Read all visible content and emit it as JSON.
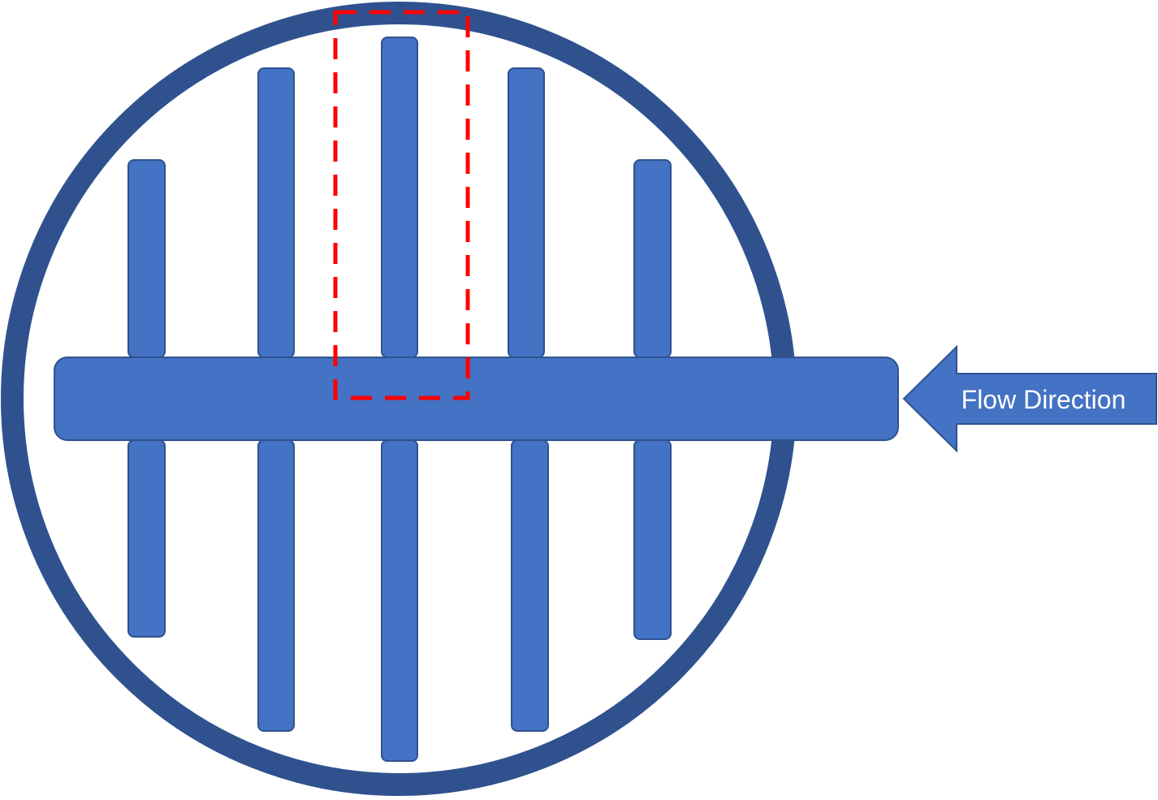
{
  "diagram": {
    "flow_arrow": {
      "label": "Flow Direction"
    },
    "colors": {
      "vessel_ring": "#2f528f",
      "fill": "#4472c4",
      "outline": "#2f528f",
      "highlight": "#ff0000",
      "background": "#ffffff",
      "label_text": "#ffffff"
    }
  }
}
